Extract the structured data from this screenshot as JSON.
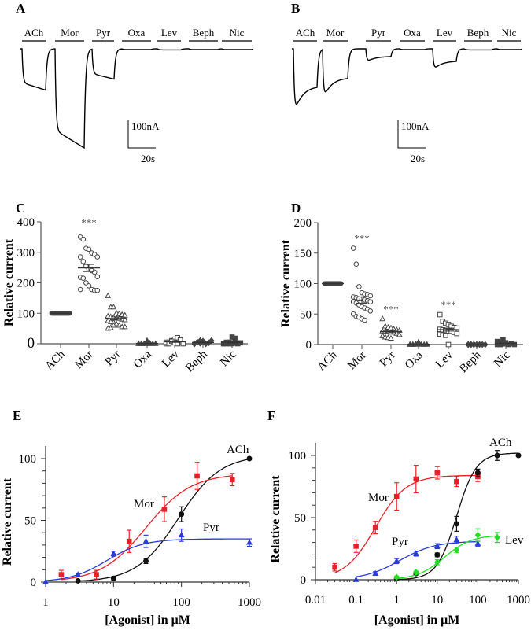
{
  "panel_A": {
    "letter": "A",
    "drugs": [
      "ACh",
      "Mor",
      "Pyr",
      "Oxa",
      "Lev",
      "Beph",
      "Nic"
    ],
    "peak_current_nA": [
      150,
      360,
      110,
      3,
      4,
      3,
      3
    ],
    "scale_current": "100nA",
    "scale_time": "20s"
  },
  "panel_B": {
    "letter": "B",
    "drugs": [
      "ACh",
      "Mor",
      "Pyr",
      "Oxa",
      "Lev",
      "Beph",
      "Nic"
    ],
    "peak_current_nA": [
      245,
      190,
      50,
      3,
      80,
      4,
      3
    ],
    "scale_current": "100nA",
    "scale_time": "20s"
  },
  "chart_data": [
    {
      "panel": "C",
      "type": "scatter",
      "ylabel": "Relative current",
      "ylim": [
        0,
        400
      ],
      "yticks": [
        "0",
        "100",
        "200",
        "300",
        "400"
      ],
      "categories": [
        "ACh",
        "Mor",
        "Pyr",
        "Oxa",
        "Lev",
        "Beph",
        "Nic"
      ],
      "markers": [
        "filled-circle",
        "open-circle",
        "open-triangle",
        "filled-triangle",
        "open-square",
        "filled-diamond",
        "filled-square"
      ],
      "significance": [
        "",
        "***",
        "",
        "",
        "",
        "",
        ""
      ],
      "values": [
        [
          100,
          100,
          100,
          100,
          100,
          100,
          100,
          100,
          100,
          100,
          100,
          100,
          100,
          100,
          100,
          100,
          100,
          100,
          100,
          100
        ],
        [
          350,
          343,
          313,
          310,
          298,
          293,
          285,
          285,
          270,
          255,
          245,
          240,
          235,
          220,
          218,
          215,
          200,
          190,
          178,
          175,
          175,
          178
        ],
        [
          157,
          120,
          120,
          100,
          98,
          95,
          93,
          90,
          88,
          86,
          85,
          83,
          80,
          78,
          75,
          72,
          70,
          65,
          60,
          55,
          55,
          50,
          52,
          60
        ],
        [
          0,
          0,
          0,
          10,
          0,
          0,
          0,
          0,
          0,
          0,
          0,
          2
        ],
        [
          0,
          5,
          10,
          15,
          20,
          12,
          0,
          5,
          0,
          8,
          3,
          0
        ],
        [
          0,
          5,
          10,
          8,
          0,
          3,
          10,
          0,
          5,
          2,
          8,
          0
        ],
        [
          0,
          0,
          5,
          22,
          18,
          0,
          3,
          0,
          5,
          0,
          0,
          2
        ]
      ]
    },
    {
      "panel": "D",
      "type": "scatter",
      "ylabel": "Relative current",
      "ylim": [
        0,
        200
      ],
      "yticks": [
        "0",
        "50",
        "100",
        "150",
        "200"
      ],
      "categories": [
        "ACh",
        "Mor",
        "Pyr",
        "Oxa",
        "Lev",
        "Beph",
        "Nic"
      ],
      "markers": [
        "filled-circle",
        "open-circle",
        "open-triangle",
        "filled-triangle",
        "open-square",
        "filled-diamond",
        "filled-square"
      ],
      "significance": [
        "",
        "***",
        "***",
        "",
        "***",
        "",
        ""
      ],
      "values": [
        [
          100,
          100,
          100,
          100,
          100,
          100,
          100,
          100,
          100,
          100,
          100,
          100,
          100,
          100,
          100,
          100,
          100,
          100
        ],
        [
          158,
          132,
          95,
          85,
          83,
          82,
          80,
          78,
          77,
          75,
          75,
          73,
          72,
          70,
          70,
          68,
          65,
          62,
          60,
          58,
          55,
          50,
          46,
          45,
          42,
          40
        ],
        [
          42,
          30,
          28,
          27,
          25,
          24,
          23,
          22,
          22,
          21,
          20,
          20,
          18,
          16,
          14,
          12,
          11,
          10
        ],
        [
          0,
          0,
          0,
          4,
          0,
          0,
          0,
          0,
          0,
          1
        ],
        [
          49,
          38,
          35,
          33,
          30,
          28,
          27,
          25,
          24,
          23,
          22,
          22,
          20,
          18,
          17,
          16,
          15,
          0
        ],
        [
          0,
          0,
          0,
          0,
          0,
          0,
          0,
          0,
          0,
          0
        ],
        [
          0,
          0,
          8,
          3,
          0,
          2,
          0,
          5,
          0,
          1
        ]
      ]
    },
    {
      "panel": "E",
      "type": "line",
      "xscale": "log",
      "xlim": [
        1,
        1000
      ],
      "xticks": [
        "1",
        "10",
        "100",
        "1000"
      ],
      "ylim": [
        0,
        110
      ],
      "yticks": [
        "0",
        "50",
        "100"
      ],
      "xlabel": "[Agonist] in μM",
      "ylabel": "Relative current",
      "series": [
        {
          "name": "ACh",
          "color": "#111111",
          "marker": "circle",
          "x": [
            3,
            10,
            30,
            100,
            1000
          ],
          "y": [
            1,
            3,
            17,
            55,
            100
          ],
          "err": [
            0.5,
            1.5,
            2,
            6,
            0
          ]
        },
        {
          "name": "Mor",
          "color": "#e8202a",
          "marker": "square",
          "x": [
            1.7,
            5.6,
            17,
            56,
            170,
            560
          ],
          "y": [
            6,
            6,
            33,
            59,
            86,
            83
          ],
          "err": [
            3.5,
            3.5,
            9,
            10,
            11,
            5
          ]
        },
        {
          "name": "Pyr",
          "color": "#2a3bd6",
          "marker": "triangle",
          "x": [
            1,
            3,
            10,
            30,
            100,
            1000
          ],
          "y": [
            0,
            6,
            23,
            33,
            38,
            32
          ],
          "err": [
            0,
            1,
            2,
            5,
            5,
            3
          ]
        }
      ]
    },
    {
      "panel": "F",
      "type": "line",
      "xscale": "log",
      "xlim": [
        0.01,
        1000
      ],
      "xticks": [
        "0.01",
        "0.1",
        "1",
        "10",
        "100",
        "1000"
      ],
      "ylim": [
        0,
        110
      ],
      "yticks": [
        "0",
        "50",
        "100"
      ],
      "xlabel": "[Agonist] in μM",
      "ylabel": "Relative current",
      "series": [
        {
          "name": "Mor",
          "color": "#e8202a",
          "marker": "square",
          "x": [
            0.03,
            0.1,
            0.3,
            1,
            3,
            10,
            30,
            100
          ],
          "y": [
            10,
            27,
            42,
            67,
            81,
            86,
            79,
            83
          ],
          "err": [
            3,
            5,
            5,
            11,
            11,
            5,
            4,
            4
          ]
        },
        {
          "name": "Pyr",
          "color": "#2a3bd6",
          "marker": "triangle",
          "x": [
            0.1,
            0.3,
            1,
            3,
            10,
            30,
            100
          ],
          "y": [
            0,
            5,
            15,
            21,
            27,
            32,
            29
          ],
          "err": [
            0,
            1.5,
            2,
            2,
            2,
            3,
            2
          ]
        },
        {
          "name": "ACh",
          "color": "#111111",
          "marker": "circle",
          "x": [
            1,
            3,
            10,
            30,
            100,
            300,
            1000
          ],
          "y": [
            1,
            5,
            20,
            45,
            86,
            100,
            100
          ],
          "err": [
            0.5,
            1,
            1.5,
            6,
            3,
            4,
            0
          ]
        },
        {
          "name": "Lev",
          "color": "#22dd22",
          "marker": "diamond",
          "x": [
            1,
            3,
            10,
            30,
            100,
            300
          ],
          "y": [
            2,
            6,
            14,
            24,
            36,
            34
          ],
          "err": [
            1,
            1,
            2,
            2,
            5,
            4
          ]
        }
      ]
    }
  ]
}
